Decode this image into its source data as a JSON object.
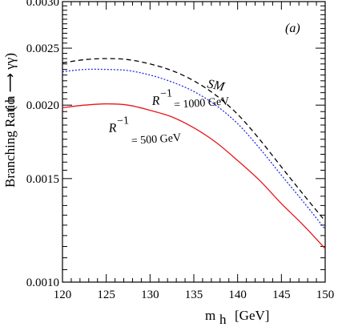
{
  "chart_data": {
    "type": "line",
    "panel_label": "(a)",
    "xlabel": "m",
    "xlabel_sub": "h",
    "xlabel_unit": "[GeV]",
    "ylabel": "Branching Ratio",
    "ylabel_process": "( h ⟶ γγ)",
    "xlim": [
      120,
      150
    ],
    "ylim": [
      0.001,
      0.003
    ],
    "y_scale": "log",
    "x_ticks": [
      "120",
      "125",
      "130",
      "135",
      "140",
      "145",
      "150"
    ],
    "y_ticks": [
      "0.0010",
      "0.0015",
      "0.0020",
      "0.0025",
      "0.0030"
    ],
    "annotations": {
      "sm": "SM",
      "r1000_sym": "R",
      "r1000_sup": "−1",
      "r1000_val": "= 1000 GeV",
      "r500_sym": "R",
      "r500_sup": "−1",
      "r500_val": "= 500 GeV"
    },
    "series": [
      {
        "name": "SM",
        "color": "#000000",
        "dash": "6,4",
        "x": [
          120,
          122.5,
          125,
          127.5,
          130,
          132.5,
          135,
          137.5,
          140,
          142.5,
          145,
          147.5,
          150
        ],
        "y": [
          0.00236,
          0.00239,
          0.0024,
          0.00239,
          0.00235,
          0.00229,
          0.0022,
          0.00208,
          0.00193,
          0.00175,
          0.00157,
          0.00141,
          0.00127
        ]
      },
      {
        "name": "R^-1 = 1000 GeV",
        "color": "#1f2fe0",
        "dash": "2,2",
        "x": [
          120,
          122.5,
          125,
          127.5,
          130,
          132.5,
          135,
          137.5,
          140,
          142.5,
          145,
          147.5,
          150
        ],
        "y": [
          0.00228,
          0.0023,
          0.0023,
          0.00229,
          0.00225,
          0.00219,
          0.00211,
          0.002,
          0.00186,
          0.00169,
          0.00152,
          0.00137,
          0.00123
        ]
      },
      {
        "name": "R^-1 = 500 GeV",
        "color": "#e8141c",
        "dash": "",
        "x": [
          120,
          122.5,
          125,
          127.5,
          130,
          132.5,
          135,
          137.5,
          140,
          142.5,
          145,
          147.5,
          150
        ],
        "y": [
          0.00198,
          0.002,
          0.00201,
          0.002,
          0.00196,
          0.00191,
          0.00183,
          0.00173,
          0.00161,
          0.00149,
          0.00136,
          0.00125,
          0.00114
        ]
      }
    ]
  }
}
